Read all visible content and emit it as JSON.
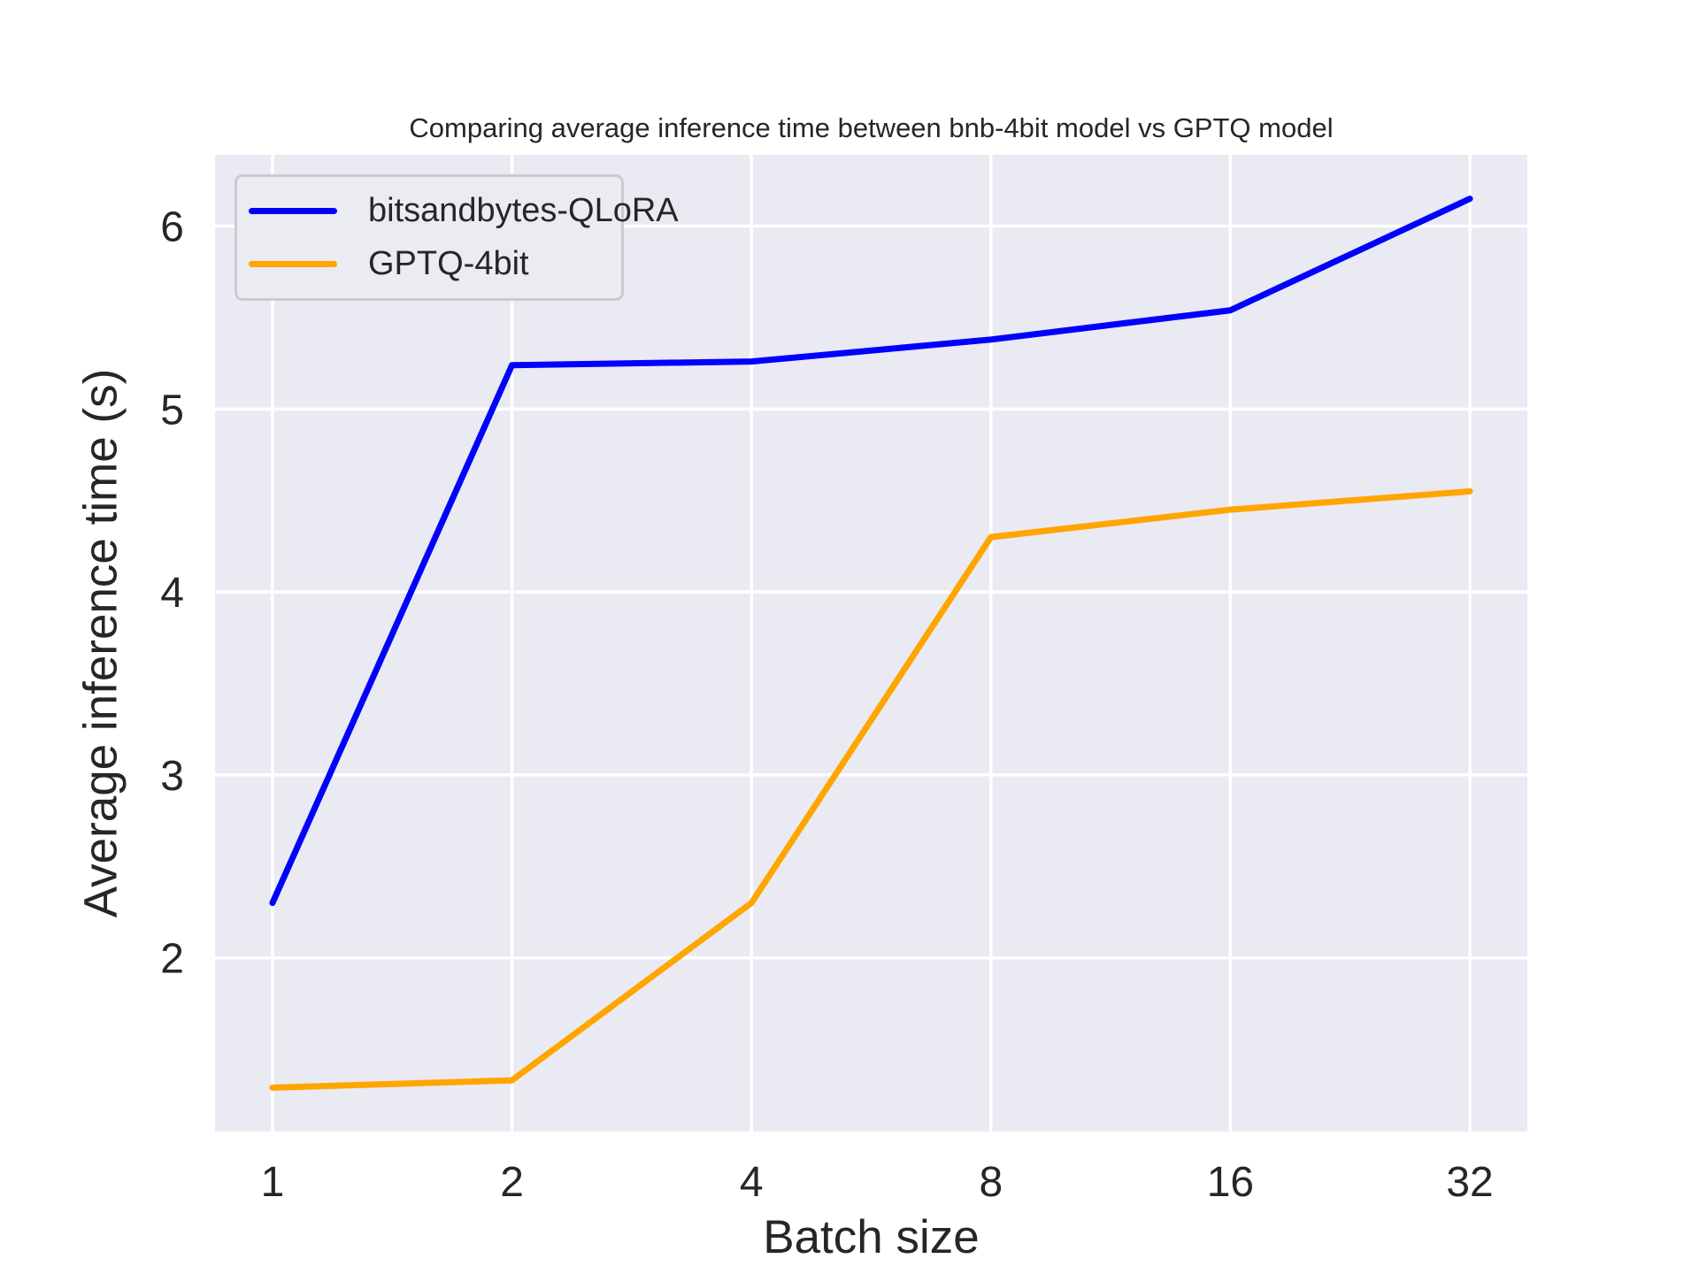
{
  "style": {
    "figure_bg": "#ffffff",
    "axes_bg": "#eaeaf2",
    "grid_color": "#ffffff",
    "text_color": "#262626",
    "legend_bg": "#ebebf2",
    "legend_border": "#cacad2"
  },
  "chart_data": {
    "type": "line",
    "title": "Comparing average inference time between bnb-4bit model vs GPTQ model",
    "xlabel": "Batch size",
    "ylabel": "Average inference time (s)",
    "categories": [
      1,
      2,
      4,
      8,
      16,
      32
    ],
    "x_tick_labels": [
      "1",
      "2",
      "4",
      "8",
      "16",
      "32"
    ],
    "x_scale": "log2-categorical-even-spacing",
    "x_index_margin": 0.24,
    "y_ticks": [
      2,
      3,
      4,
      5,
      6
    ],
    "ylim": [
      1.05,
      6.39
    ],
    "grid": true,
    "legend_position": "upper left",
    "series": [
      {
        "name": "bitsandbytes-QLoRA",
        "color": "#0000ff",
        "values": [
          2.3,
          5.24,
          5.26,
          5.38,
          5.54,
          6.15
        ]
      },
      {
        "name": "GPTQ-4bit",
        "color": "#ffa500",
        "values": [
          1.29,
          1.33,
          2.3,
          4.3,
          4.45,
          4.55
        ]
      }
    ]
  }
}
